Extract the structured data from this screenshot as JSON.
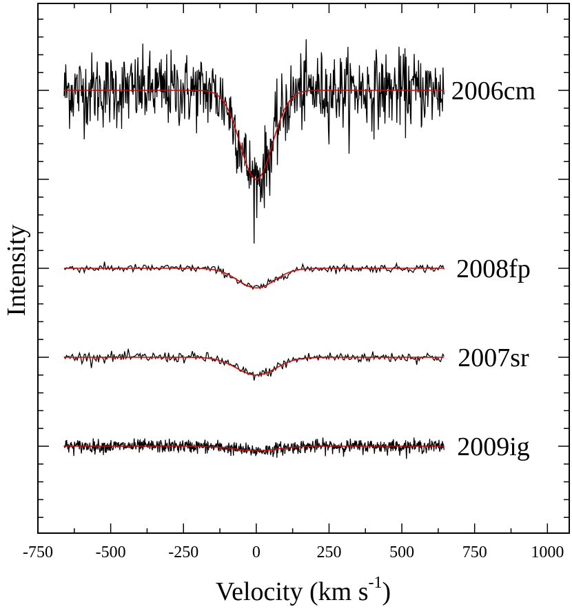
{
  "chart_data": {
    "type": "line",
    "xlabel": "Velocity (km s",
    "xlabel_sup": "-1",
    "xlabel_close": ")",
    "ylabel": "Intensity",
    "xlim": [
      -750,
      1075
    ],
    "x_ticks": [
      -750,
      -500,
      -250,
      0,
      250,
      500,
      750,
      1000
    ],
    "x_tick_labels": [
      "-750",
      "-500",
      "-250",
      "0",
      "250",
      "500",
      "750",
      "1000"
    ],
    "y_ticks": [
      0,
      1,
      2,
      3,
      4,
      5
    ],
    "grid": false,
    "velocity_range": [
      -660,
      645
    ],
    "series": [
      {
        "name": "2006cm",
        "baseline": 5,
        "depth": 1.0,
        "fwhm": 130,
        "noise": 0.42,
        "fit_color": "#e00000",
        "data_color": "#000000"
      },
      {
        "name": "2008fp",
        "baseline": 3,
        "depth": 0.22,
        "fwhm": 150,
        "noise": 0.045,
        "fit_color": "#e00000",
        "data_color": "#000000"
      },
      {
        "name": "2007sr",
        "baseline": 2,
        "depth": 0.2,
        "fwhm": 160,
        "noise": 0.06,
        "fit_color": "#e00000",
        "data_color": "#000000"
      },
      {
        "name": "2009ig",
        "baseline": 1,
        "depth": 0.05,
        "fwhm": 170,
        "noise": 0.075,
        "fit_color": "#e00000",
        "data_color": "#000000"
      }
    ]
  }
}
